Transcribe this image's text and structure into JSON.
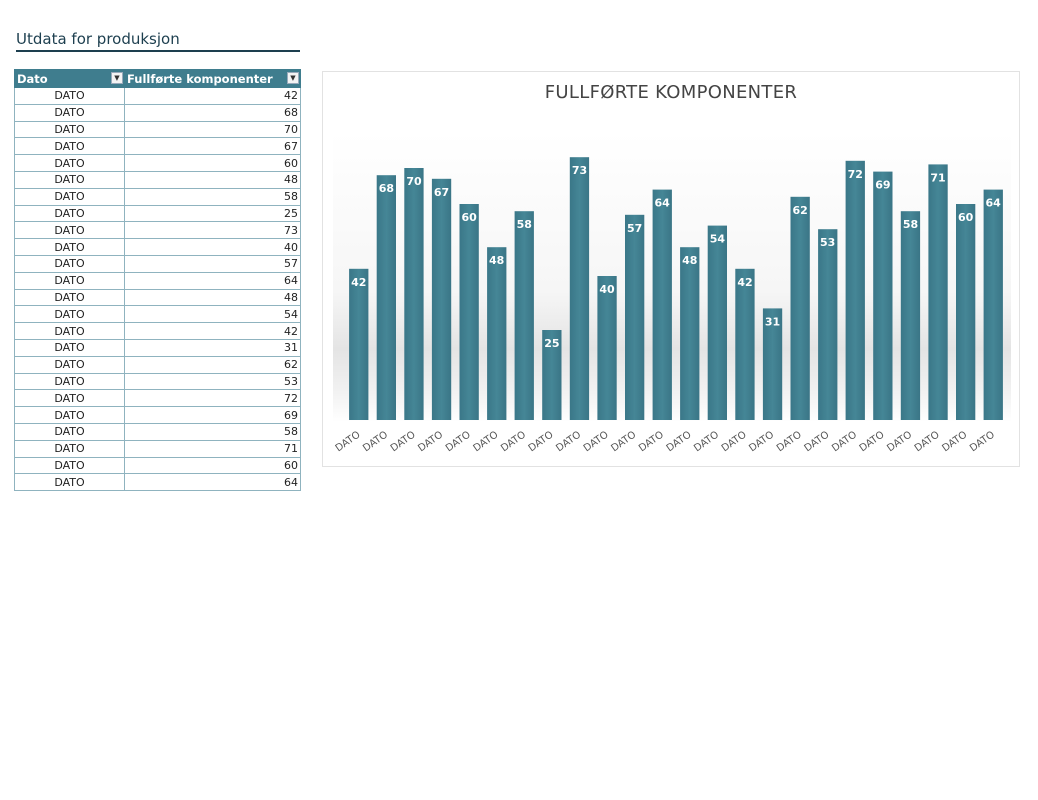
{
  "sheet": {
    "title": "Utdata for produksjon",
    "columns": [
      "Dato",
      "Fullførte komponenter"
    ]
  },
  "chart_data": {
    "type": "bar",
    "title": "FULLFØRTE KOMPONENTER",
    "xlabel": "",
    "ylabel": "",
    "categories": [
      "DATO",
      "DATO",
      "DATO",
      "DATO",
      "DATO",
      "DATO",
      "DATO",
      "DATO",
      "DATO",
      "DATO",
      "DATO",
      "DATO",
      "DATO",
      "DATO",
      "DATO",
      "DATO",
      "DATO",
      "DATO",
      "DATO",
      "DATO",
      "DATO",
      "DATO",
      "DATO",
      "DATO"
    ],
    "values": [
      42,
      68,
      70,
      67,
      60,
      48,
      58,
      25,
      73,
      40,
      57,
      64,
      48,
      54,
      42,
      31,
      62,
      53,
      72,
      69,
      58,
      71,
      60,
      64
    ],
    "ylim": [
      0,
      80
    ],
    "grid": false,
    "legend": "none",
    "bar_color": "#3f7d8e"
  }
}
